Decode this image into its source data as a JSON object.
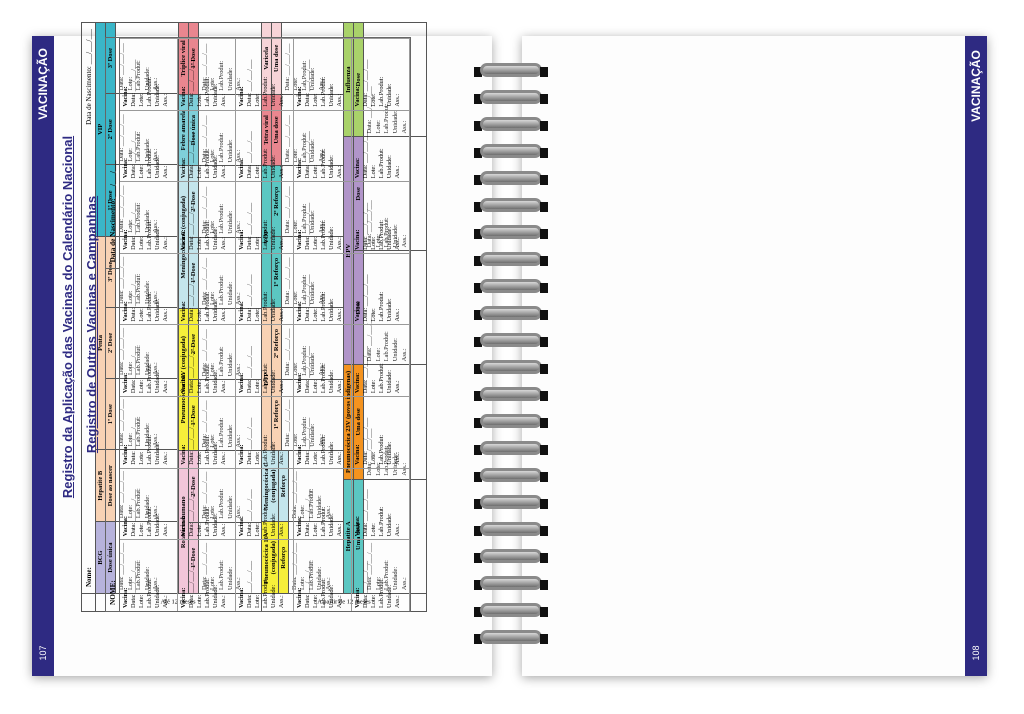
{
  "left_page": {
    "band_title": "VACINAÇÃO",
    "page_number": "107",
    "title": "Registro da Aplicação das Vacinas do Calendário Nacional",
    "name_label": "Nome:",
    "birth_label": "Data de Nascimento: ___/___/___",
    "row_labels": [
      "Até 12 meses",
      "A partir de 12 meses"
    ],
    "field_lines": [
      "Data: ___/___/___",
      "Lote:",
      "Lab.Produt:",
      "Unidade:",
      "Ass.:"
    ],
    "blocks": [
      {
        "groups": [
          {
            "name": "BCG",
            "color": "#b7b3dc",
            "doses": [
              "Dose única"
            ]
          },
          {
            "name": "Hepatite B",
            "color": "#f8d2b4",
            "doses": [
              "Dose ao nascer"
            ]
          },
          {
            "name": "Penta",
            "color": "#f8d2b4",
            "doses": [
              "1ª Dose",
              "2ª Dose",
              "3ª Dose"
            ]
          },
          {
            "name": "VIP",
            "color": "#3ab6c8",
            "doses": [
              "1ª Dose",
              "2ª Dose",
              "3ª Dose"
            ]
          }
        ]
      },
      {
        "groups": [
          {
            "name": "Rotavírus humano",
            "color": "#f2c6d9",
            "doses": [
              "1ª Dose",
              "2ª Dose"
            ]
          },
          {
            "name": "Pneumocócica 10V (conjugada)",
            "color": "#f6ef3a",
            "doses": [
              "1ª Dose",
              "2ª Dose"
            ]
          },
          {
            "name": "Meningocócica C (conjugada)",
            "color": "#c4e5ec",
            "doses": [
              "1ª Dose",
              "2ª Dose"
            ]
          },
          {
            "name": "Febre amarela",
            "color": "#7fcfd9",
            "doses": [
              "Dose única"
            ]
          },
          {
            "name": "Tríplice viral",
            "color": "#e9868f",
            "doses": [
              "1ª Dose"
            ]
          }
        ]
      },
      {
        "groups": [
          {
            "name": "Pneumocócica 10V (conjugada)",
            "color": "#f6ef3a",
            "doses": [
              "Reforço"
            ]
          },
          {
            "name": "Meningocócica C (conjugada)",
            "color": "#c4e5ec",
            "doses": [
              "Reforço"
            ]
          },
          {
            "name": "DTP",
            "color": "#f8d2b4",
            "doses": [
              "1º Reforço",
              "2º Reforço"
            ]
          },
          {
            "name": "VOP",
            "color": "#5bc7c2",
            "doses": [
              "1º Reforço",
              "2º Reforço"
            ]
          },
          {
            "name": "Tetra viral",
            "color": "#e9868f",
            "doses": [
              "Uma dose"
            ]
          },
          {
            "name": "Varicela",
            "color": "#f7d4d8",
            "doses": [
              "Uma dose"
            ]
          }
        ]
      },
      {
        "groups": [
          {
            "name": "Hepatite A",
            "color": "#5bc7c2",
            "doses": [
              "Uma dose"
            ]
          },
          {
            "name": "Pneumocócica 23V (povos indígenas)",
            "color": "#f4931f",
            "doses": [
              "Uma dose"
            ]
          },
          {
            "name": "HPV",
            "color": "#b195c9",
            "doses": [
              "Dose",
              "Dose"
            ]
          },
          {
            "name": "Influenza",
            "color": "#a9d26a",
            "doses": [
              "Dose"
            ]
          }
        ]
      }
    ]
  },
  "right_page": {
    "band_title": "VACINAÇÃO",
    "page_number": "108",
    "title": "Registro de Outras Vacinas e Campanhas",
    "name_label": "NOME:",
    "birth_label": "Data de Nascimento: ___/___/___",
    "cell_lines": [
      "Vacina:",
      "Data: ___/___/___",
      "Lote:",
      "Lab.Produt:",
      "Unidade:",
      "Ass.:"
    ],
    "columns": 8,
    "rows": 5
  }
}
